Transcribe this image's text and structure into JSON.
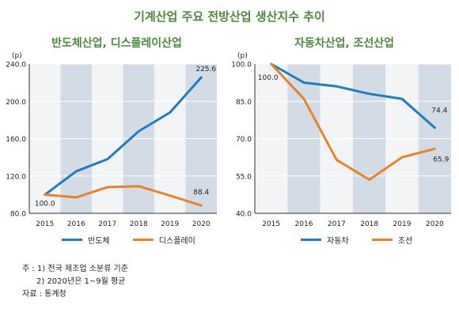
{
  "title": "기계산업 주요 전방산업 생산지수 추이",
  "chart_data": [
    {
      "type": "line",
      "title": "반도체산업, 디스플레이산업",
      "ylabel": "(p)",
      "categories": [
        "2015",
        "2016",
        "2017",
        "2018",
        "2019",
        "2020"
      ],
      "ylim": [
        80,
        240
      ],
      "yticks": [
        "80.0",
        "120.0",
        "160.0",
        "200.0",
        "240.0"
      ],
      "series": [
        {
          "name": "반도체",
          "color": "#1f7dbd",
          "values": [
            100.0,
            125,
            138,
            168,
            188,
            225.6
          ]
        },
        {
          "name": "디스플레이",
          "color": "#e8832a",
          "values": [
            100.0,
            97,
            108,
            109,
            99,
            88.4
          ]
        }
      ],
      "data_labels": [
        "100.0",
        "225.6",
        "88.4"
      ],
      "legend_position": "bottom"
    },
    {
      "type": "line",
      "title": "자동차산업, 조선산업",
      "ylabel": "(p)",
      "categories": [
        "2015",
        "2016",
        "2017",
        "2018",
        "2019",
        "2020"
      ],
      "ylim": [
        40,
        100
      ],
      "yticks": [
        "40.0",
        "55.0",
        "70.0",
        "85.0",
        "100.0"
      ],
      "series": [
        {
          "name": "자동차",
          "color": "#1f7dbd",
          "values": [
            100.0,
            92.5,
            91,
            88,
            86,
            74.4
          ]
        },
        {
          "name": "조선",
          "color": "#e8832a",
          "values": [
            100.0,
            86,
            61.5,
            53.5,
            62.5,
            65.9
          ]
        }
      ],
      "data_labels": [
        "100.0",
        "74.4",
        "65.9"
      ],
      "legend_position": "bottom"
    }
  ],
  "notes": [
    "주 : 1) 전국 제조업 소분류 기준",
    "2) 2020년은 1~9월 평균",
    "자료 : 통계청"
  ]
}
